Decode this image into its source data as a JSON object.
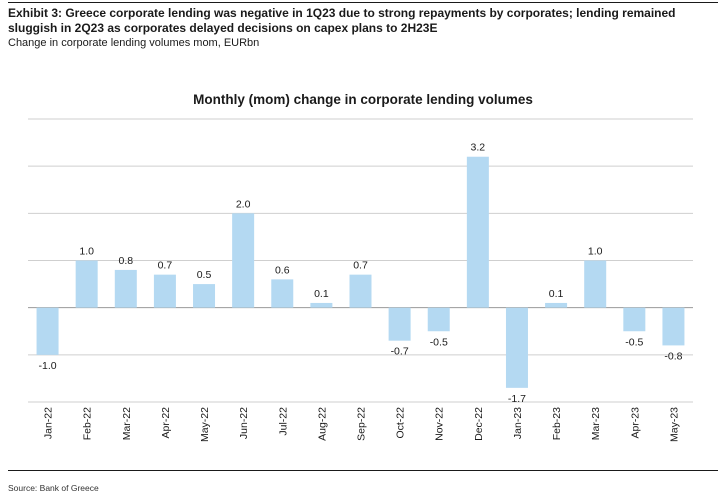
{
  "header": {
    "exhibit_title": "Exhibit 3: Greece corporate lending was negative in 1Q23 due to strong repayments by corporates; lending remained sluggish in 2Q23 as corporates delayed decisions on capex plans to 2H23E",
    "subtitle": "Change in corporate lending volumes mom, EURbn"
  },
  "footer": {
    "source": "Source: Bank of Greece"
  },
  "colors": {
    "bar": "#b4d9f2",
    "gridline": "#cfcfcf",
    "zero_line": "#9a9a9a",
    "text": "#1a1a1a"
  },
  "chart_data": {
    "type": "bar",
    "title": "Monthly (mom) change in corporate lending volumes",
    "categories": [
      "Jan-22",
      "Feb-22",
      "Mar-22",
      "Apr-22",
      "May-22",
      "Jun-22",
      "Jul-22",
      "Aug-22",
      "Sep-22",
      "Oct-22",
      "Nov-22",
      "Dec-22",
      "Jan-23",
      "Feb-23",
      "Mar-23",
      "Apr-23",
      "May-23"
    ],
    "values": [
      -1.0,
      1.0,
      0.8,
      0.7,
      0.5,
      2.0,
      0.6,
      0.1,
      0.7,
      -0.7,
      -0.5,
      3.2,
      -1.7,
      0.1,
      1.0,
      -0.5,
      -0.8
    ],
    "data_labels": [
      "-1.0",
      "1.0",
      "0.8",
      "0.7",
      "0.5",
      "2.0",
      "0.6",
      "0.1",
      "0.7",
      "-0.7",
      "-0.5",
      "3.2",
      "-1.7",
      "0.1",
      "1.0",
      "-0.5",
      "-0.8"
    ],
    "ylim": [
      -2.0,
      4.0
    ],
    "gridlines": [
      -2,
      -1,
      0,
      1,
      2,
      3,
      4
    ],
    "y_tick_labels_shown": false,
    "grid": true,
    "legend": "none",
    "xlabel": "",
    "ylabel": ""
  }
}
